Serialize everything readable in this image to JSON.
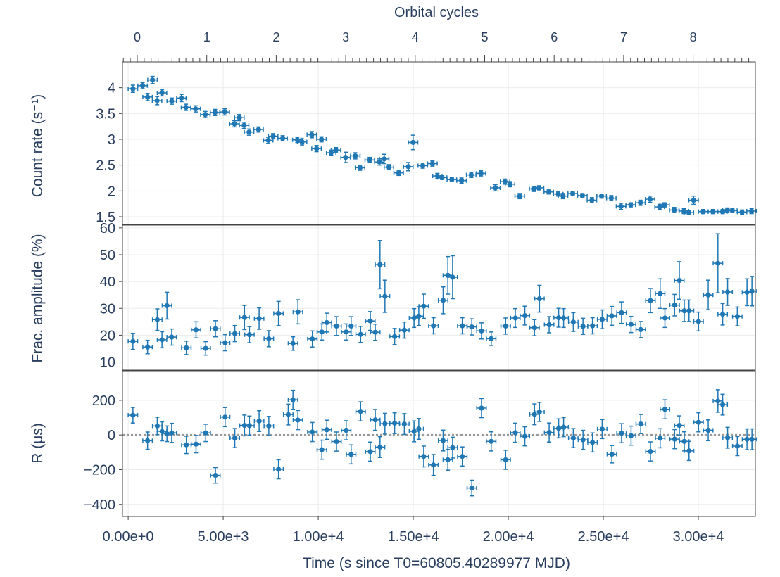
{
  "chart_data": {
    "type": "scatter",
    "top_axis": {
      "label": "Orbital cycles",
      "tick_labels": [
        "0",
        "1",
        "2",
        "3",
        "4",
        "5",
        "6",
        "7",
        "8"
      ]
    },
    "x_axis": {
      "label": "Time (s since T0=60805.40289977 MJD)",
      "range": [
        -300,
        33000
      ],
      "ticks": [
        0,
        5000,
        10000,
        15000,
        20000,
        25000,
        30000
      ],
      "tick_labels": [
        "0.00e+0",
        "5.00e+3",
        "1.00e+4",
        "1.50e+4",
        "2.00e+4",
        "2.50e+4",
        "3.00e+4"
      ]
    },
    "panels": [
      {
        "name": "count-rate",
        "ylabel": "Count rate (s⁻¹)",
        "ylim": [
          1.35,
          4.5
        ],
        "yticks": [
          1.5,
          2,
          2.5,
          3,
          3.5,
          4
        ],
        "ytick_labels": [
          "1.5",
          "2",
          "2.5",
          "3",
          "3.5",
          "4"
        ],
        "x": [
          250,
          760,
          1020,
          1280,
          1520,
          1780,
          2290,
          2800,
          3040,
          3550,
          4060,
          4570,
          5080,
          5590,
          5850,
          6100,
          6360,
          6860,
          7370,
          7630,
          8130,
          8900,
          9150,
          9660,
          9910,
          10170,
          10680,
          10930,
          11440,
          11950,
          12200,
          12710,
          13220,
          13470,
          13720,
          14230,
          14740,
          14990,
          15500,
          16010,
          16270,
          16520,
          17030,
          17540,
          18050,
          18560,
          19320,
          19830,
          20090,
          20600,
          21360,
          21620,
          22130,
          22630,
          22880,
          23390,
          23900,
          24400,
          24910,
          25420,
          25930,
          26440,
          26950,
          27460,
          27960,
          28220,
          28730,
          29240,
          29500,
          29750,
          30260,
          30770,
          31280,
          31530,
          31790,
          32300,
          32800
        ],
        "y": [
          3.98,
          4.04,
          3.82,
          4.15,
          3.75,
          3.9,
          3.74,
          3.8,
          3.62,
          3.59,
          3.48,
          3.52,
          3.53,
          3.3,
          3.42,
          3.27,
          3.14,
          3.19,
          2.98,
          3.06,
          3.02,
          2.99,
          2.95,
          3.09,
          2.82,
          3.0,
          2.74,
          2.79,
          2.65,
          2.68,
          2.45,
          2.6,
          2.56,
          2.62,
          2.46,
          2.35,
          2.47,
          2.94,
          2.49,
          2.53,
          2.29,
          2.26,
          2.22,
          2.2,
          2.31,
          2.34,
          2.06,
          2.18,
          2.13,
          1.9,
          2.04,
          2.06,
          1.98,
          1.94,
          1.9,
          1.95,
          1.91,
          1.82,
          1.9,
          1.86,
          1.7,
          1.73,
          1.77,
          1.84,
          1.69,
          1.73,
          1.63,
          1.61,
          1.58,
          1.82,
          1.6,
          1.6,
          1.6,
          1.63,
          1.62,
          1.59,
          1.61
        ],
        "yerr": [
          0.07,
          0.06,
          0.07,
          0.07,
          0.08,
          0.06,
          0.06,
          0.07,
          0.06,
          0.06,
          0.06,
          0.06,
          0.06,
          0.06,
          0.06,
          0.06,
          0.06,
          0.05,
          0.06,
          0.05,
          0.05,
          0.05,
          0.06,
          0.06,
          0.06,
          0.05,
          0.05,
          0.05,
          0.1,
          0.06,
          0.05,
          0.05,
          0.06,
          0.09,
          0.05,
          0.05,
          0.08,
          0.14,
          0.05,
          0.05,
          0.05,
          0.04,
          0.04,
          0.05,
          0.05,
          0.05,
          0.06,
          0.05,
          0.05,
          0.05,
          0.05,
          0.04,
          0.04,
          0.04,
          0.05,
          0.04,
          0.04,
          0.05,
          0.04,
          0.05,
          0.06,
          0.04,
          0.05,
          0.06,
          0.05,
          0.04,
          0.05,
          0.05,
          0.04,
          0.08,
          0.04,
          0.04,
          0.04,
          0.04,
          0.04,
          0.04,
          0.05
        ],
        "xerr": 250
      },
      {
        "name": "frac-amplitude",
        "ylabel": "Frac. amplitude (%)",
        "ylim": [
          7,
          61
        ],
        "yticks": [
          10,
          20,
          30,
          40,
          50,
          60
        ],
        "ytick_labels": [
          "10",
          "20",
          "30",
          "40",
          "50",
          "60"
        ],
        "x": [
          250,
          1020,
          1530,
          1780,
          2040,
          2290,
          3060,
          3570,
          4080,
          4590,
          5100,
          5610,
          6120,
          6380,
          6890,
          7400,
          7910,
          8670,
          8930,
          9690,
          10190,
          10450,
          10960,
          11470,
          11730,
          12230,
          12740,
          13000,
          13250,
          13510,
          14020,
          14530,
          15040,
          15290,
          15550,
          16060,
          16570,
          16820,
          17070,
          17580,
          18080,
          18590,
          19100,
          19860,
          20370,
          20870,
          21380,
          21640,
          22150,
          22650,
          22910,
          23420,
          23930,
          24430,
          24940,
          25450,
          25960,
          26460,
          26970,
          27480,
          27990,
          28240,
          28750,
          29000,
          29260,
          29510,
          30010,
          30520,
          31030,
          31280,
          31540,
          32050,
          32560,
          32820
        ],
        "y": [
          17.7,
          15.6,
          25.8,
          18.3,
          31.0,
          19.3,
          15.3,
          22.0,
          15.1,
          22.4,
          17.2,
          20.6,
          26.6,
          20.2,
          26.2,
          18.7,
          28.1,
          16.9,
          28.7,
          18.6,
          21.2,
          24.7,
          23.4,
          21.2,
          23.4,
          20.3,
          25.3,
          21.1,
          46.3,
          34.5,
          19.5,
          21.9,
          26.4,
          27.1,
          30.8,
          23.5,
          33.0,
          42.3,
          41.6,
          23.5,
          23.1,
          21.6,
          18.7,
          23.4,
          26.4,
          27.3,
          22.8,
          33.6,
          23.9,
          26.5,
          26.4,
          24.9,
          23.3,
          23.5,
          25.9,
          27.2,
          28.4,
          24.0,
          22.1,
          32.9,
          35.5,
          26.4,
          31.2,
          40.4,
          29.1,
          29.1,
          25.1,
          35.0,
          46.8,
          27.8,
          36.1,
          27.0,
          36.0,
          36.4
        ],
        "yerr": [
          3.0,
          2.5,
          4.0,
          3.0,
          5.0,
          3.0,
          2.5,
          3.0,
          2.5,
          3.0,
          3.0,
          3.0,
          4.5,
          3.0,
          4.0,
          3.0,
          4.5,
          2.5,
          4.5,
          3.0,
          3.0,
          3.5,
          3.5,
          3.0,
          3.5,
          3.0,
          3.5,
          3.0,
          9.0,
          6.0,
          3.0,
          3.0,
          3.5,
          3.5,
          4.5,
          3.0,
          5.0,
          7.0,
          8.0,
          3.0,
          3.0,
          3.0,
          2.5,
          3.0,
          3.5,
          3.5,
          3.0,
          5.0,
          3.0,
          3.5,
          3.5,
          3.5,
          3.0,
          3.0,
          3.5,
          3.5,
          4.0,
          3.0,
          3.0,
          4.5,
          5.5,
          3.5,
          4.0,
          7.0,
          4.0,
          4.0,
          3.5,
          5.5,
          11.0,
          4.0,
          5.0,
          3.5,
          5.0,
          5.5
        ],
        "xerr": 250
      },
      {
        "name": "r-delay",
        "ylabel": "R (μs)",
        "ylim": [
          -470,
          370
        ],
        "yticks": [
          -400,
          -200,
          0,
          200
        ],
        "ytick_labels": [
          "−400",
          "−200",
          "0",
          "200"
        ],
        "reference_line": 0,
        "x": [
          250,
          1020,
          1530,
          1780,
          2040,
          2290,
          3060,
          3570,
          4080,
          4590,
          5100,
          5610,
          6120,
          6380,
          6890,
          7400,
          7910,
          8420,
          8670,
          8930,
          9690,
          10190,
          10450,
          10960,
          11470,
          11730,
          12230,
          12740,
          13000,
          13250,
          13510,
          14020,
          14530,
          15040,
          15290,
          15550,
          16060,
          16570,
          16820,
          17070,
          17580,
          18080,
          18590,
          19100,
          19860,
          20370,
          20870,
          21380,
          21640,
          22150,
          22650,
          22910,
          23420,
          23930,
          24430,
          24940,
          25450,
          25960,
          26460,
          26970,
          27480,
          27990,
          28240,
          28750,
          29000,
          29260,
          29510,
          30010,
          30520,
          31030,
          31280,
          31540,
          32050,
          32560,
          32820
        ],
        "y": [
          114,
          -33,
          52,
          21,
          7,
          12,
          -57,
          -53,
          12,
          -233,
          103,
          -18,
          55,
          54,
          80,
          52,
          -198,
          118,
          203,
          86,
          17,
          -85,
          30,
          -38,
          27,
          -112,
          136,
          -96,
          87,
          -70,
          65,
          68,
          63,
          21,
          35,
          -124,
          -173,
          -32,
          -143,
          -73,
          -124,
          -306,
          155,
          -37,
          -143,
          13,
          -8,
          119,
          133,
          14,
          38,
          45,
          -18,
          -28,
          -43,
          34,
          -111,
          10,
          -4,
          63,
          -95,
          -19,
          148,
          -24,
          55,
          -37,
          -92,
          73,
          27,
          196,
          175,
          -16,
          -64,
          -25,
          -25
        ],
        "yerr": [
          45,
          50,
          50,
          55,
          45,
          55,
          50,
          50,
          50,
          45,
          55,
          55,
          60,
          55,
          60,
          55,
          55,
          60,
          55,
          55,
          55,
          55,
          55,
          55,
          55,
          55,
          55,
          55,
          60,
          60,
          60,
          60,
          60,
          60,
          60,
          60,
          60,
          60,
          60,
          60,
          55,
          45,
          55,
          55,
          55,
          55,
          55,
          60,
          55,
          55,
          55,
          55,
          55,
          55,
          55,
          55,
          50,
          55,
          55,
          55,
          55,
          55,
          55,
          55,
          55,
          55,
          55,
          55,
          60,
          65,
          60,
          60,
          55,
          60,
          60
        ],
        "xerr": 250
      }
    ]
  }
}
